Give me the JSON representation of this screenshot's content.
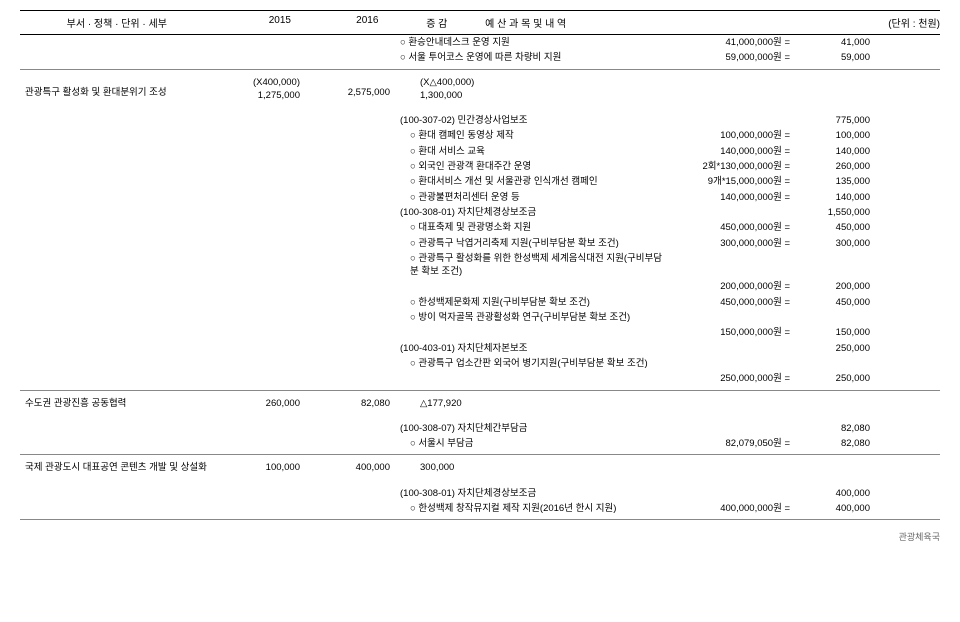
{
  "header": {
    "dept": "부서 · 정책 · 단위 · 세부",
    "y2015": "2015",
    "y2016": "2016",
    "diff": "증 감",
    "desc": "예 산 과 목 및  내 역",
    "unit": "(단위 : 천원)"
  },
  "rows": [
    {
      "type": "line",
      "d": "○ 환승안내데스크 운영 지원",
      "c": "41,000,000원 =",
      "a": "41,000"
    },
    {
      "type": "line",
      "d": "○ 서울 투어코스 운영에 따른 차량비 지원",
      "c": "59,000,000원 =",
      "a": "59,000"
    },
    {
      "type": "hr"
    },
    {
      "type": "section",
      "dept": "관광특구 활성화 및 환대분위기 조성",
      "y2015a": "(X400,000)",
      "y2015b": "1,275,000",
      "y2016": "2,575,000",
      "diffa": "(X△400,000)",
      "diffb": "1,300,000"
    },
    {
      "type": "gap"
    },
    {
      "type": "line",
      "d": "(100-307-02) 민간경상사업보조",
      "c": "",
      "a": "775,000"
    },
    {
      "type": "line",
      "d": "○ 환대 캠페인 동영상 제작",
      "c": "100,000,000원 =",
      "a": "100,000",
      "indent": 2
    },
    {
      "type": "line",
      "d": "○ 환대 서비스 교육",
      "c": "140,000,000원 =",
      "a": "140,000",
      "indent": 2
    },
    {
      "type": "line",
      "d": "○ 외국인 관광객 환대주간 운영",
      "c": "2회*130,000,000원 =",
      "a": "260,000",
      "indent": 2
    },
    {
      "type": "line",
      "d": "○ 환대서비스 개선 및 서울관광 인식개선 캠페인",
      "c": "9개*15,000,000원 =",
      "a": "135,000",
      "indent": 2
    },
    {
      "type": "line",
      "d": "○ 관광불편처리센터 운영 등",
      "c": "140,000,000원 =",
      "a": "140,000",
      "indent": 2
    },
    {
      "type": "line",
      "d": "(100-308-01) 자치단체경상보조금",
      "c": "",
      "a": "1,550,000"
    },
    {
      "type": "line",
      "d": "○ 대표축제 및 관광명소화 지원",
      "c": "450,000,000원 =",
      "a": "450,000",
      "indent": 2
    },
    {
      "type": "line",
      "d": "○ 관광특구 낙엽거리축제 지원(구비부담분 확보 조건)",
      "c": "300,000,000원 =",
      "a": "300,000",
      "indent": 2
    },
    {
      "type": "line",
      "d": "○ 관광특구 활성화를 위한 한성백제 세계음식대전 지원(구비부담분 확보 조건)",
      "c": "",
      "a": "",
      "indent": 2
    },
    {
      "type": "line",
      "d": "",
      "c": "200,000,000원 =",
      "a": "200,000",
      "indent": 2
    },
    {
      "type": "line",
      "d": "○ 한성백제문화제 지원(구비부담분 확보 조건)",
      "c": "450,000,000원 =",
      "a": "450,000",
      "indent": 2
    },
    {
      "type": "line",
      "d": "○ 방이 먹자골목 관광활성화 연구(구비부담분 확보 조건)",
      "c": "",
      "a": "",
      "indent": 2
    },
    {
      "type": "line",
      "d": "",
      "c": "150,000,000원 =",
      "a": "150,000",
      "indent": 2
    },
    {
      "type": "line",
      "d": "(100-403-01) 자치단체자본보조",
      "c": "",
      "a": "250,000"
    },
    {
      "type": "line",
      "d": "○ 관광특구 업소간판 외국어 병기지원(구비부담분 확보 조건)",
      "c": "",
      "a": "",
      "indent": 2
    },
    {
      "type": "line",
      "d": "",
      "c": "250,000,000원 =",
      "a": "250,000",
      "indent": 2
    },
    {
      "type": "hr"
    },
    {
      "type": "section",
      "dept": "수도권 관광진흥 공동협력",
      "y2015b": "260,000",
      "y2016": "82,080",
      "diffb": "△177,920"
    },
    {
      "type": "gap"
    },
    {
      "type": "line",
      "d": "(100-308-07) 자치단체간부담금",
      "c": "",
      "a": "82,080"
    },
    {
      "type": "line",
      "d": "○ 서울시 부담금",
      "c": "82,079,050원 =",
      "a": "82,080",
      "indent": 2
    },
    {
      "type": "hr"
    },
    {
      "type": "section",
      "dept": "국제 관광도시 대표공연 콘텐츠 개발 및 상설화",
      "y2015b": "100,000",
      "y2016": "400,000",
      "diffb": "300,000"
    },
    {
      "type": "gap"
    },
    {
      "type": "line",
      "d": "(100-308-01) 자치단체경상보조금",
      "c": "",
      "a": "400,000"
    },
    {
      "type": "line",
      "d": "○ 한성백제 창작뮤지컬 제작 지원(2016년 한시 지원)",
      "c": "400,000,000원 =",
      "a": "400,000",
      "indent": 2
    },
    {
      "type": "hr"
    }
  ],
  "footer": "관광체육국"
}
